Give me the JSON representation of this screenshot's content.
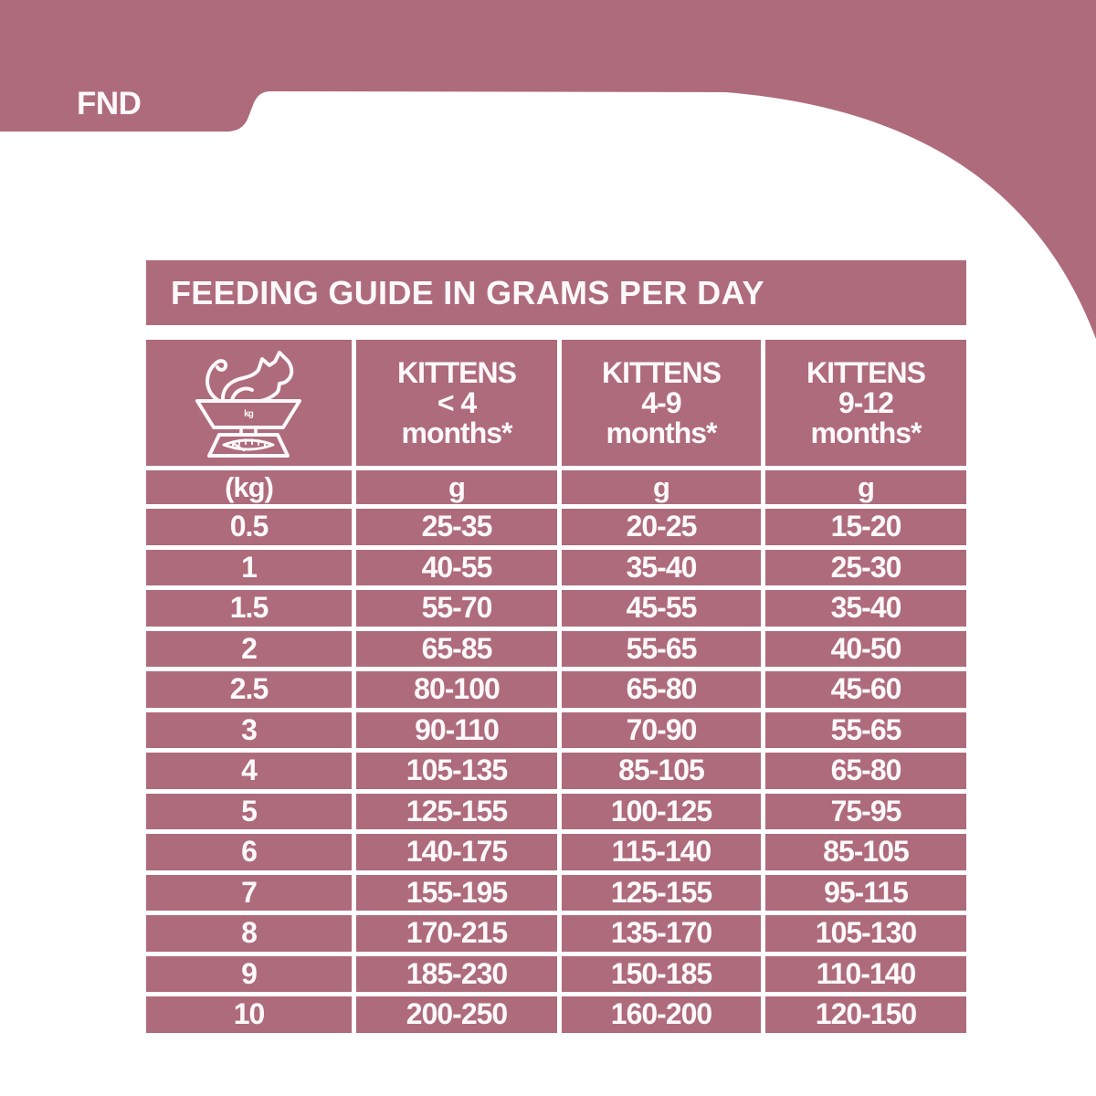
{
  "colors": {
    "mauve": "#ae6b7b",
    "text": "#fdf9fa",
    "page_background": "#ffffff"
  },
  "header": {
    "tab_label": "FND"
  },
  "feeding_table": {
    "title": "FEEDING GUIDE IN GRAMS PER DAY",
    "weight_header": {
      "icon": "cat-on-scale-icon",
      "icon_label": "kg"
    },
    "age_columns": [
      {
        "species": "KITTENS",
        "age": "< 4",
        "suffix": "months*"
      },
      {
        "species": "KITTENS",
        "age": "4-9",
        "suffix": "months*"
      },
      {
        "species": "KITTENS",
        "age": "9-12",
        "suffix": "months*"
      }
    ],
    "unit_row": {
      "weight_unit": "(kg)",
      "grams_units": [
        "g",
        "g",
        "g"
      ]
    },
    "rows": [
      [
        "0.5",
        "25-35",
        "20-25",
        "15-20"
      ],
      [
        "1",
        "40-55",
        "35-40",
        "25-30"
      ],
      [
        "1.5",
        "55-70",
        "45-55",
        "35-40"
      ],
      [
        "2",
        "65-85",
        "55-65",
        "40-50"
      ],
      [
        "2.5",
        "80-100",
        "65-80",
        "45-60"
      ],
      [
        "3",
        "90-110",
        "70-90",
        "55-65"
      ],
      [
        "4",
        "105-135",
        "85-105",
        "65-80"
      ],
      [
        "5",
        "125-155",
        "100-125",
        "75-95"
      ],
      [
        "6",
        "140-175",
        "115-140",
        "85-105"
      ],
      [
        "7",
        "155-195",
        "125-155",
        "95-115"
      ],
      [
        "8",
        "170-215",
        "135-170",
        "105-130"
      ],
      [
        "9",
        "185-230",
        "150-185",
        "110-140"
      ],
      [
        "10",
        "200-250",
        "160-200",
        "120-150"
      ]
    ]
  }
}
